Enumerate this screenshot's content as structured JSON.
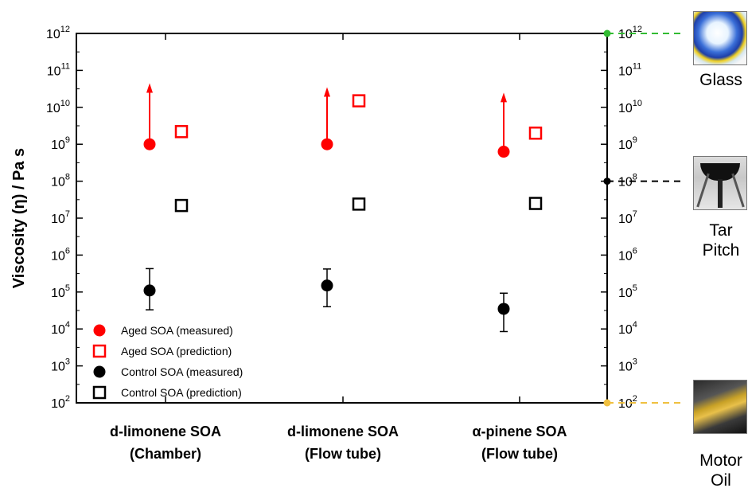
{
  "chart_data": {
    "type": "scatter",
    "ylabel": "Viscosity (η) / Pa s",
    "yscale": "log",
    "ylim": [
      100,
      1000000000000
    ],
    "yticks": [
      "10^2",
      "10^3",
      "10^4",
      "10^5",
      "10^6",
      "10^7",
      "10^8",
      "10^9",
      "10^10",
      "10^11",
      "10^12"
    ],
    "categories": [
      [
        "d-limonene SOA",
        "(Chamber)"
      ],
      [
        "d-limonene SOA",
        "(Flow tube)"
      ],
      [
        "α-pinene SOA",
        "(Flow tube)"
      ]
    ],
    "series": [
      {
        "name": "Aged SOA (measured)",
        "marker": "filled-circle",
        "color": "#ff0000",
        "values": [
          1000000000,
          1000000000,
          630000000
        ],
        "lower_limit_arrow_to": [
          45000000000,
          35000000000,
          25000000000
        ]
      },
      {
        "name": "Aged SOA (prediction)",
        "marker": "open-square",
        "color": "#ff0000",
        "values": [
          2200000000,
          15000000000,
          2000000000
        ]
      },
      {
        "name": "Control SOA (measured)",
        "marker": "filled-circle",
        "color": "#000000",
        "values": [
          110000,
          150000,
          35000
        ],
        "error_low": [
          33000,
          40000,
          8500
        ],
        "error_high": [
          430000,
          420000,
          93000
        ]
      },
      {
        "name": "Control SOA (prediction)",
        "marker": "open-square",
        "color": "#000000",
        "values": [
          22000000,
          24000000,
          25000000
        ]
      }
    ],
    "references": [
      {
        "label": "Glass",
        "value": 1000000000000,
        "color": "#33bb33"
      },
      {
        "label": "Tar Pitch",
        "value": 100000000,
        "color": "#000000"
      },
      {
        "label": "Motor Oil",
        "value": 100,
        "color": "#f0c040"
      }
    ],
    "legend_position": "bottom-left"
  }
}
